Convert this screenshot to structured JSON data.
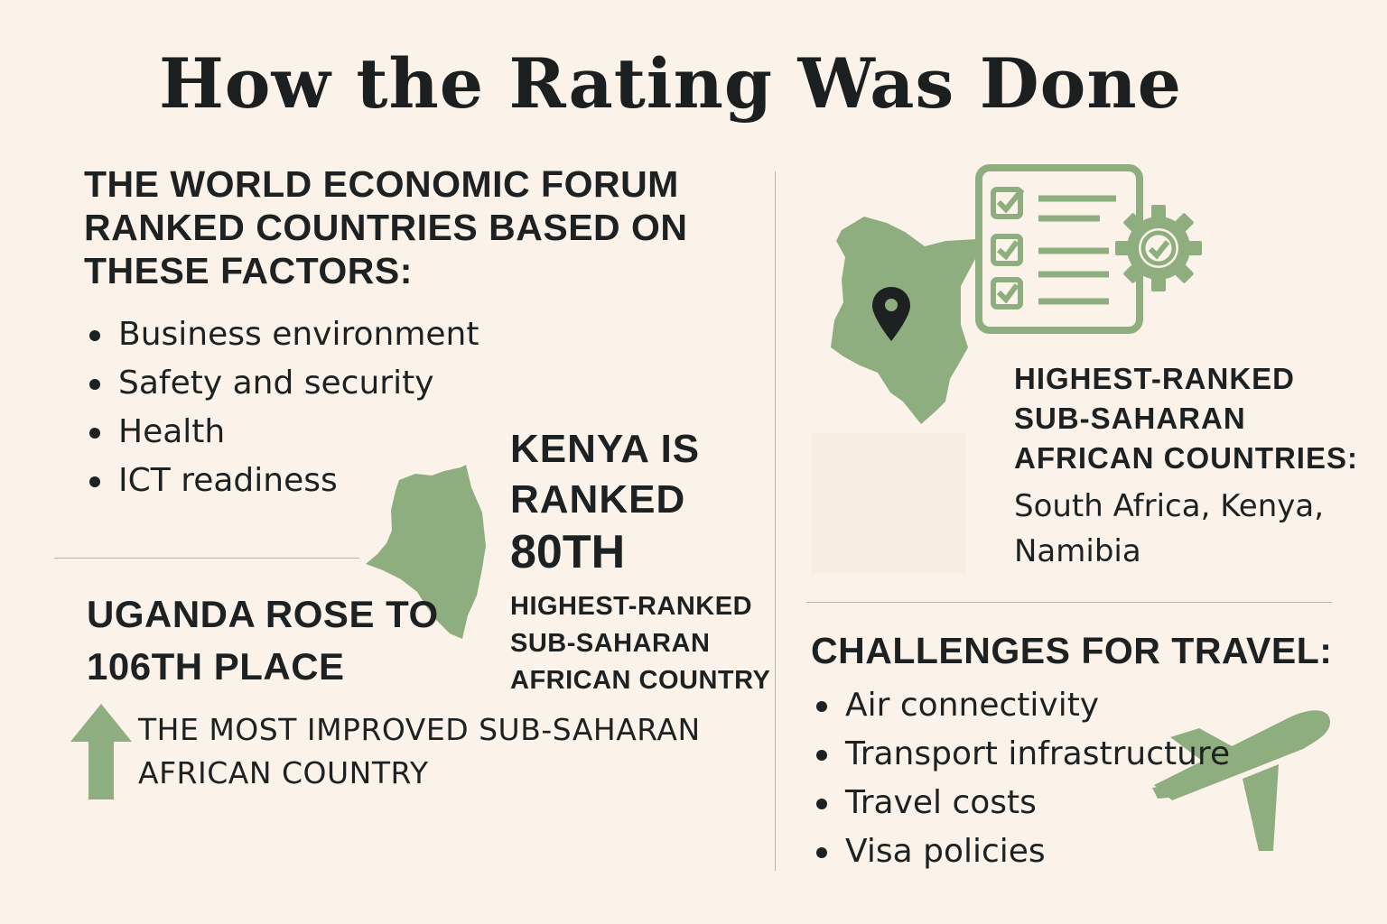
{
  "title": "How the Rating Was Done",
  "factors": {
    "heading": "THE WORLD ECONOMIC FORUM RANKED COUNTRIES BASED ON THESE FACTORS:",
    "items": [
      "Business environment",
      "Safety and security",
      "Health",
      "ICT readiness"
    ]
  },
  "kenya": {
    "heading": "KENYA IS RANKED",
    "rank": "80TH",
    "subtitle": "HIGHEST-RANKED SUB-SAHARAN AFRICAN COUNTRY"
  },
  "uganda": {
    "heading": "UGANDA ROSE TO 106TH PLACE",
    "subtitle": "THE MOST IMPROVED SUB-SAHARAN AFRICAN COUNTRY"
  },
  "top_countries": {
    "heading": "HIGHEST-RANKED SUB-SAHARAN AFRICAN COUNTRIES:",
    "list": "South Africa, Kenya, Namibia"
  },
  "challenges": {
    "heading": "CHALLENGES FOR TRAVEL:",
    "items": [
      "Air connectivity",
      "Transport infrastructure",
      "Travel costs",
      "Visa policies"
    ]
  },
  "colors": {
    "background": "#fbf3e9",
    "accent_green": "#8fae7f",
    "text": "#1d2121",
    "divider": "#b9b4a8"
  },
  "icons": [
    "kenya-map-icon",
    "location-pin-icon",
    "checklist-icon",
    "gear-check-icon",
    "up-arrow-icon",
    "airplane-icon"
  ]
}
